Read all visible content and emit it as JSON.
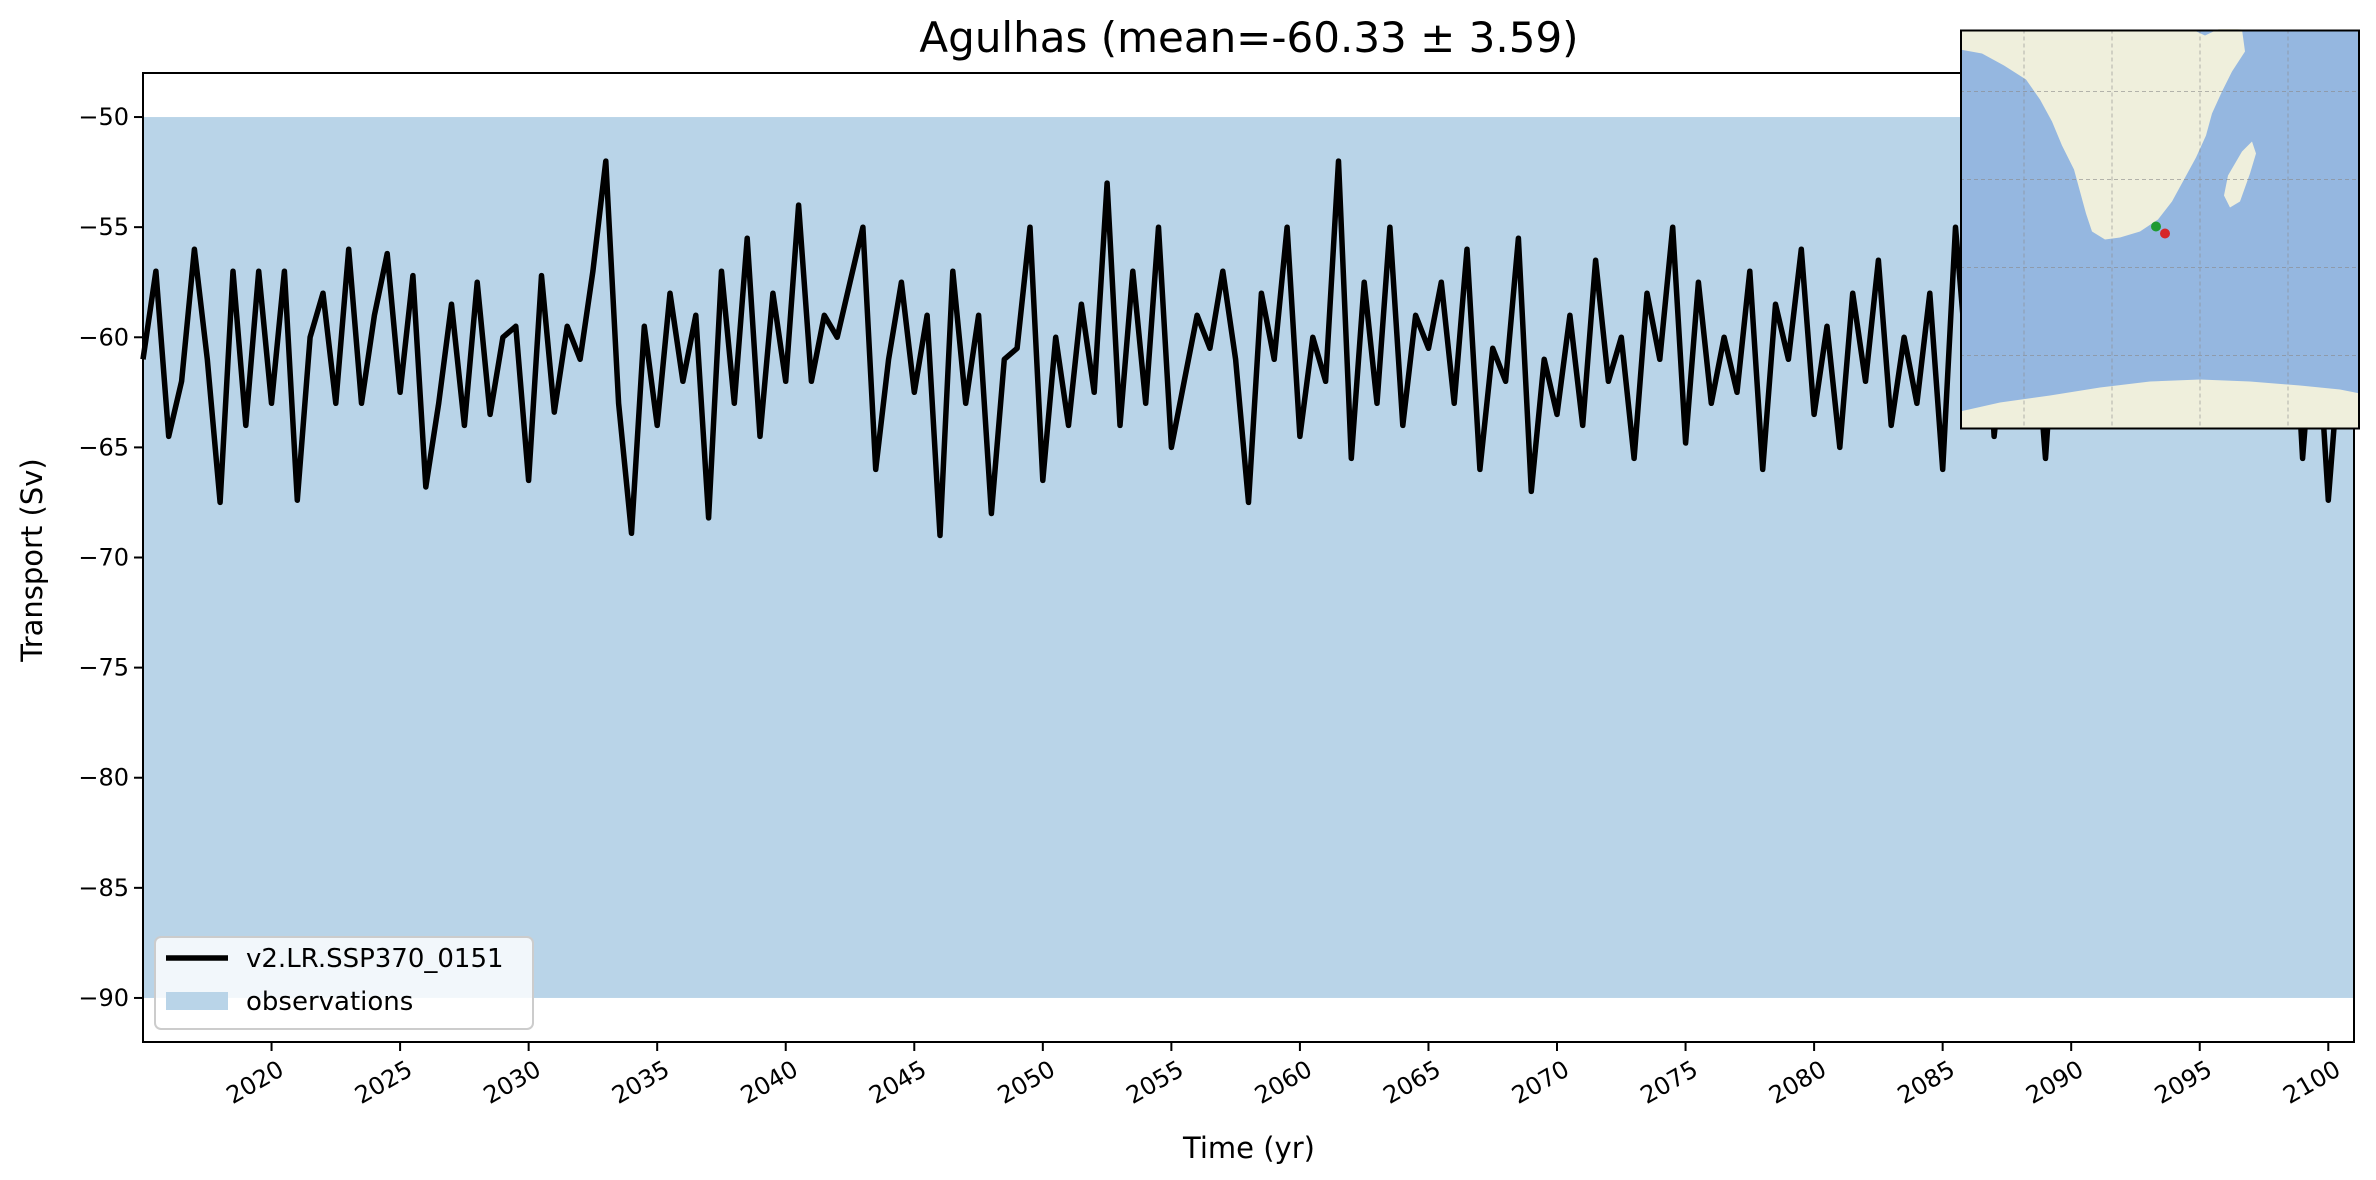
{
  "chart_data": {
    "type": "line",
    "title": "Agulhas (mean=-60.33 ± 3.59)",
    "xlabel": "Time (yr)",
    "ylabel": "Transport (Sv)",
    "xlim": [
      2015.0,
      2101.0
    ],
    "ylim": [
      -92.0,
      -48.0
    ],
    "xticks": [
      2020,
      2025,
      2030,
      2035,
      2040,
      2045,
      2050,
      2055,
      2060,
      2065,
      2070,
      2075,
      2080,
      2085,
      2090,
      2095,
      2100
    ],
    "yticks": [
      -50,
      -55,
      -60,
      -65,
      -70,
      -75,
      -80,
      -85,
      -90
    ],
    "ytick_labels": [
      "−50",
      "−55",
      "−60",
      "−65",
      "−70",
      "−75",
      "−80",
      "−85",
      "−90"
    ],
    "observations_band": {
      "y_min": -90,
      "y_max": -50,
      "color": "#b9d4e8"
    },
    "series": [
      {
        "name": "v2.LR.SSP370_0151",
        "color": "#000000",
        "x": [
          2015.0,
          2015.5,
          2016.0,
          2016.5,
          2017.0,
          2017.5,
          2018.0,
          2018.5,
          2019.0,
          2019.5,
          2020.0,
          2020.5,
          2021.0,
          2021.5,
          2022.0,
          2022.5,
          2023.0,
          2023.5,
          2024.0,
          2024.5,
          2025.0,
          2025.5,
          2026.0,
          2026.5,
          2027.0,
          2027.5,
          2028.0,
          2028.5,
          2029.0,
          2029.5,
          2030.0,
          2030.5,
          2031.0,
          2031.5,
          2032.0,
          2032.5,
          2033.0,
          2033.5,
          2034.0,
          2034.5,
          2035.0,
          2035.5,
          2036.0,
          2036.5,
          2037.0,
          2037.5,
          2038.0,
          2038.5,
          2039.0,
          2039.5,
          2040.0,
          2040.5,
          2041.0,
          2041.5,
          2042.0,
          2042.5,
          2043.0,
          2043.5,
          2044.0,
          2044.5,
          2045.0,
          2045.5,
          2046.0,
          2046.5,
          2047.0,
          2047.5,
          2048.0,
          2048.5,
          2049.0,
          2049.5,
          2050.0,
          2050.5,
          2051.0,
          2051.5,
          2052.0,
          2052.5,
          2053.0,
          2053.5,
          2054.0,
          2054.5,
          2055.0,
          2055.5,
          2056.0,
          2056.5,
          2057.0,
          2057.5,
          2058.0,
          2058.5,
          2059.0,
          2059.5,
          2060.0,
          2060.5,
          2061.0,
          2061.5,
          2062.0,
          2062.5,
          2063.0,
          2063.5,
          2064.0,
          2064.5,
          2065.0,
          2065.5,
          2066.0,
          2066.5,
          2067.0,
          2067.5,
          2068.0,
          2068.5,
          2069.0,
          2069.5,
          2070.0,
          2070.5,
          2071.0,
          2071.5,
          2072.0,
          2072.5,
          2073.0,
          2073.5,
          2074.0,
          2074.5,
          2075.0,
          2075.5,
          2076.0,
          2076.5,
          2077.0,
          2077.5,
          2078.0,
          2078.5,
          2079.0,
          2079.5,
          2080.0,
          2080.5,
          2081.0,
          2081.5,
          2082.0,
          2082.5,
          2083.0,
          2083.5,
          2084.0,
          2084.5,
          2085.0,
          2085.5,
          2086.0,
          2086.5,
          2087.0,
          2087.5,
          2088.0,
          2088.5,
          2089.0,
          2089.5,
          2090.0,
          2090.5,
          2091.0,
          2091.5,
          2092.0,
          2092.5,
          2093.0,
          2093.5,
          2094.0,
          2094.5,
          2095.0,
          2095.5,
          2096.0,
          2096.5,
          2097.0,
          2097.5,
          2098.0,
          2098.5,
          2099.0,
          2099.5,
          2100.0,
          2100.5
        ],
        "y": [
          -61,
          -57,
          -64.5,
          -62,
          -56,
          -61,
          -67.5,
          -57,
          -64,
          -57,
          -63,
          -57,
          -67.4,
          -60,
          -58,
          -63,
          -56,
          -63,
          -59,
          -56.2,
          -62.5,
          -57.2,
          -66.8,
          -63,
          -58.5,
          -64,
          -57.5,
          -63.5,
          -60,
          -59.5,
          -66.5,
          -57.2,
          -63.4,
          -59.5,
          -61,
          -57,
          -52,
          -63,
          -68.9,
          -59.5,
          -64,
          -58,
          -62,
          -59,
          -68.2,
          -57,
          -63,
          -55.5,
          -64.5,
          -58,
          -62,
          -54,
          -62,
          -59,
          -60,
          -57.5,
          -55,
          -66,
          -61,
          -57.5,
          -62.5,
          -59,
          -69,
          -57,
          -63,
          -59,
          -68,
          -61,
          -60.5,
          -55,
          -66.5,
          -60,
          -64,
          -58.5,
          -62.5,
          -53,
          -64,
          -57,
          -63,
          -55,
          -65,
          -62,
          -59,
          -60.5,
          -57,
          -61,
          -67.5,
          -58,
          -61,
          -55,
          -64.5,
          -60,
          -62,
          -52,
          -65.5,
          -57.5,
          -63,
          -55,
          -64,
          -59,
          -60.5,
          -57.5,
          -63,
          -56,
          -66,
          -60.5,
          -62,
          -55.5,
          -67,
          -61,
          -63.5,
          -59,
          -64,
          -56.5,
          -62,
          -60,
          -65.5,
          -58,
          -61,
          -55,
          -64.8,
          -57.5,
          -63,
          -60,
          -62.5,
          -57,
          -66,
          -58.5,
          -61,
          -56,
          -63.5,
          -59.5,
          -65,
          -58,
          -62,
          -56.5,
          -64,
          -60,
          -63,
          -58,
          -66,
          -55,
          -62,
          -53,
          -64.5,
          -59,
          -61,
          -58,
          -65.5,
          -57,
          -62,
          -60,
          -64,
          -58.5,
          -62,
          -57,
          -63.5,
          -60.5,
          -61,
          -56,
          -62,
          -58,
          -60.5,
          -57.5,
          -64,
          -59,
          -62,
          -55,
          -65.5,
          -58,
          -67.4,
          -60
        ]
      }
    ],
    "legend": {
      "placement": "lower-left",
      "entries": [
        {
          "label": "v2.LR.SSP370_0151",
          "kind": "line",
          "color": "#000000"
        },
        {
          "label": "observations",
          "kind": "patch",
          "color": "#b9d4e8"
        }
      ]
    },
    "inset_map": {
      "placement": "upper-right",
      "ocean_color": "#95b7e0",
      "land_color": "#efefdc",
      "markers": [
        {
          "color": "#1f9a32"
        },
        {
          "color": "#d62728"
        }
      ]
    }
  }
}
